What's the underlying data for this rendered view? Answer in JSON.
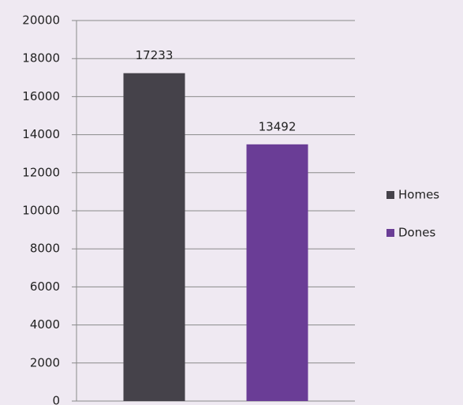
{
  "chart_data": {
    "type": "bar",
    "categories": [
      null
    ],
    "series": [
      {
        "name": "Homes",
        "color": "#45424a",
        "values": [
          17233
        ]
      },
      {
        "name": "Dones",
        "color": "#6a3d96",
        "values": [
          13492
        ]
      }
    ],
    "ylim": [
      0,
      20000
    ],
    "yticks": [
      0,
      2000,
      4000,
      6000,
      8000,
      10000,
      12000,
      14000,
      16000,
      18000,
      20000
    ],
    "grid": true,
    "legend": "right"
  }
}
